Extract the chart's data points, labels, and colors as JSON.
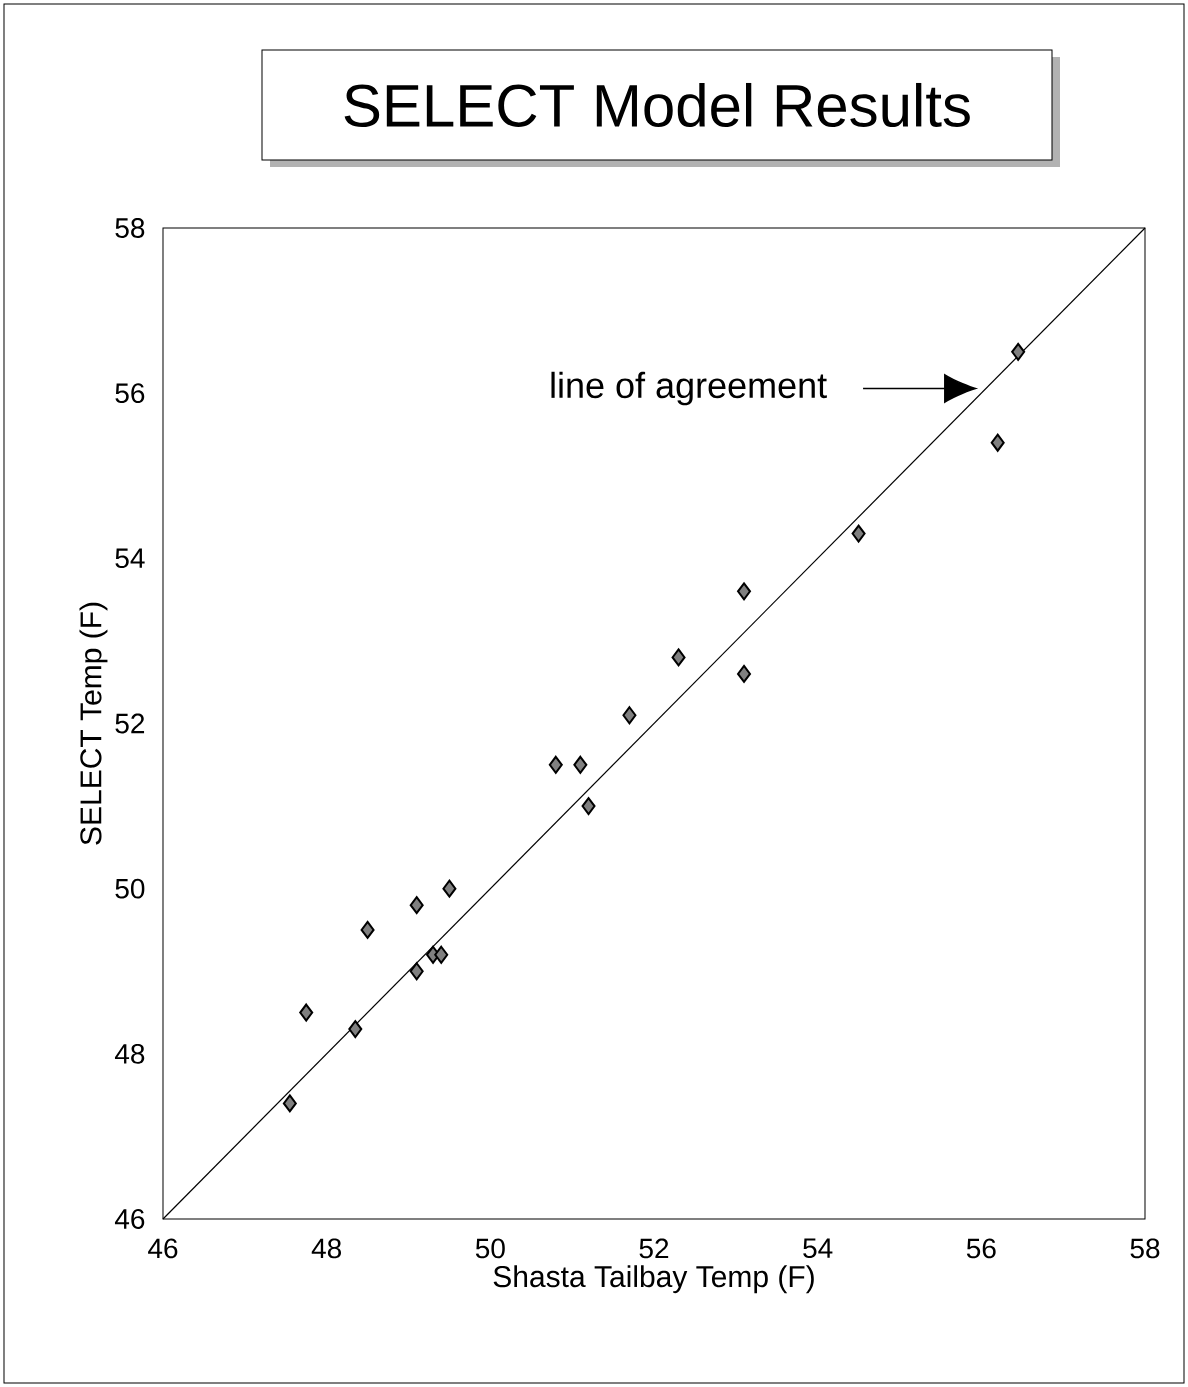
{
  "chart_data": {
    "type": "scatter",
    "title": "SELECT Model Results",
    "xlabel": "Shasta Tailbay Temp (F)",
    "ylabel": "SELECT Temp (F)",
    "xlim": [
      46,
      58
    ],
    "ylim": [
      46,
      58
    ],
    "xticks": [
      46,
      48,
      50,
      52,
      54,
      56,
      58
    ],
    "yticks": [
      46,
      48,
      50,
      52,
      54,
      56,
      58
    ],
    "grid": false,
    "marker": "diamond",
    "series": [
      {
        "color": "#808080",
        "x": [
          47.55,
          47.75,
          48.35,
          48.5,
          49.1,
          49.1,
          49.3,
          49.4,
          49.5,
          50.8,
          51.1,
          51.2,
          51.7,
          52.3,
          53.1,
          53.1,
          54.5,
          56.2,
          56.45
        ],
        "values": [
          47.4,
          48.5,
          48.3,
          49.5,
          49.8,
          49.0,
          49.2,
          49.2,
          50.0,
          51.5,
          51.5,
          51.0,
          52.1,
          52.8,
          53.6,
          52.6,
          54.3,
          55.4,
          56.5
        ]
      },
      {
        "type": "line",
        "color": "#000000",
        "marker": "none",
        "line_style": "solid",
        "x": [
          46,
          58
        ],
        "values": [
          46,
          58
        ]
      }
    ],
    "annotations": [
      "line of agreement"
    ]
  }
}
